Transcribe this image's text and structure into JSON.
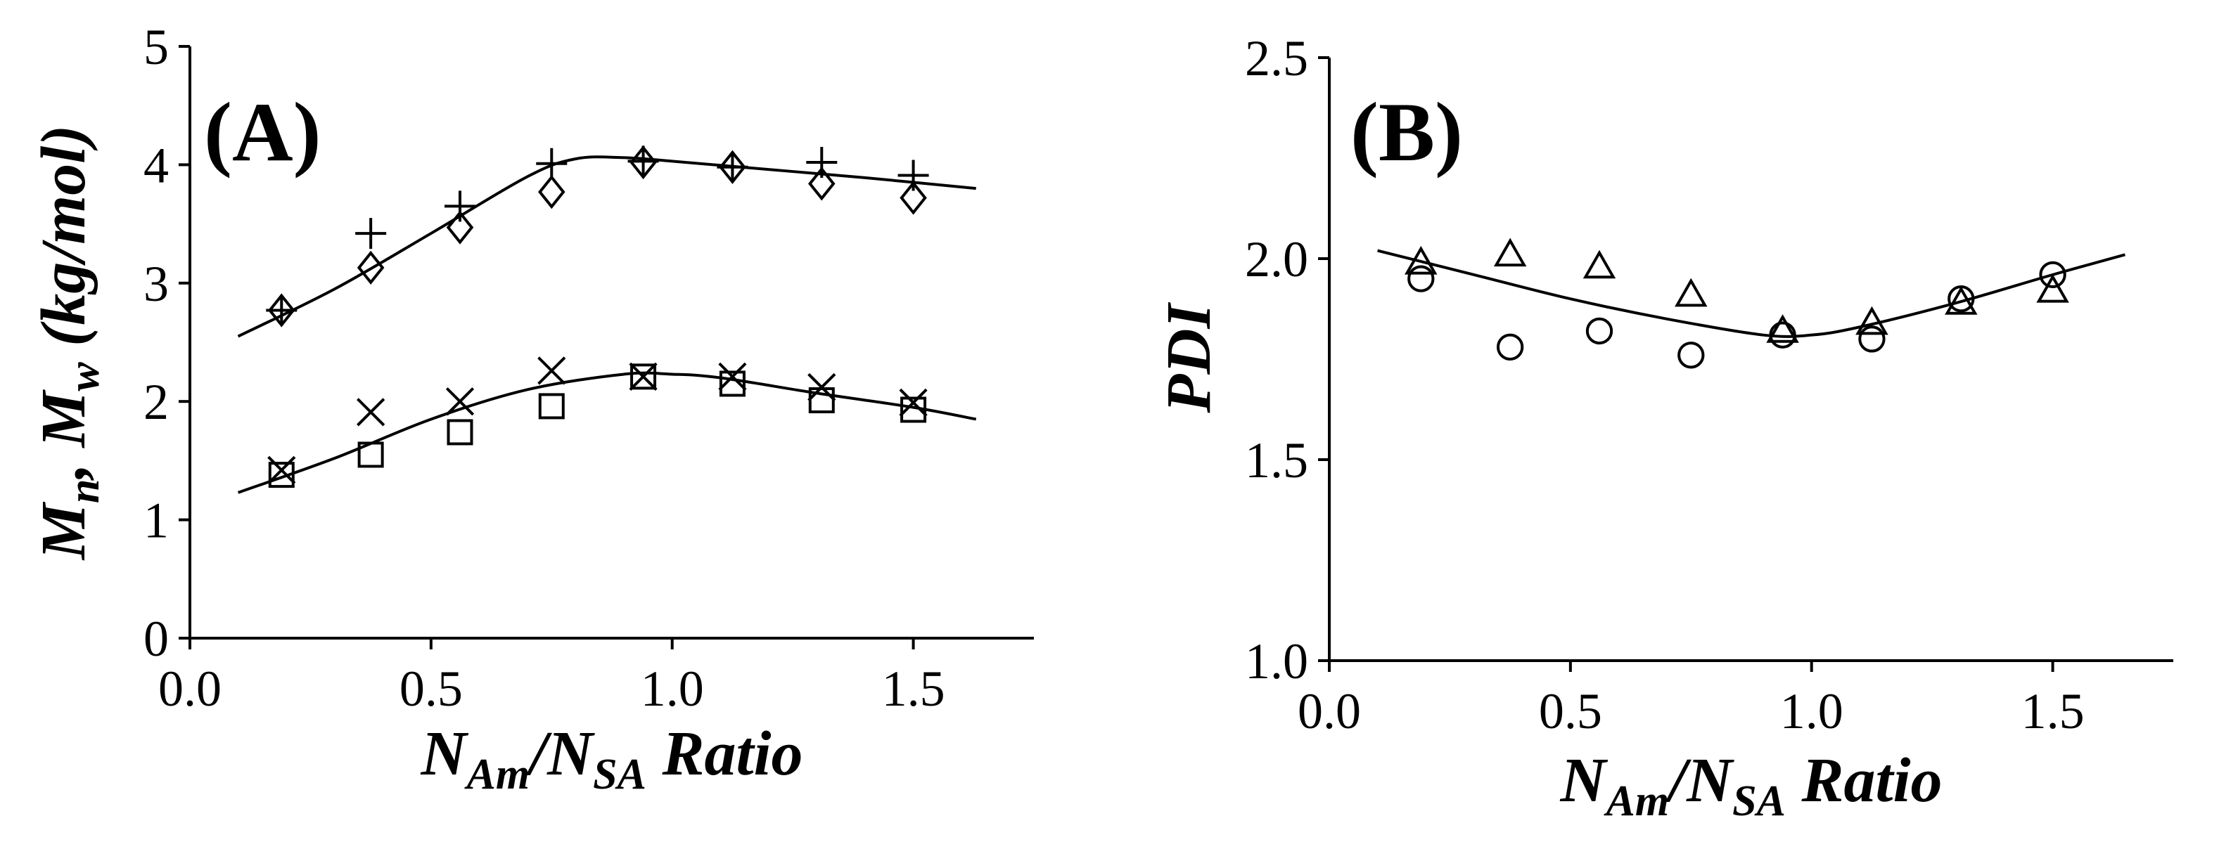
{
  "chart_data": [
    {
      "type": "scatter",
      "panel_label": "(A)",
      "xlabel": {
        "n1": "N",
        "sub1": "Am",
        "slash": "/",
        "n2": "N",
        "sub2": "SA",
        "rest": " Ratio"
      },
      "ylabel": {
        "m1": "M",
        "sub1": "n",
        "comma": ", ",
        "m2": "M",
        "sub2": "w",
        "rest": " (kg/mol)"
      },
      "xlim": [
        0,
        1.75
      ],
      "ylim": [
        0,
        5
      ],
      "xticks": [
        "0.0",
        "0.5",
        "1.0",
        "1.5"
      ],
      "yticks": [
        "0",
        "1",
        "2",
        "3",
        "4",
        "5"
      ],
      "grid": false,
      "series": [
        {
          "marker": "plus",
          "x": [
            0.19,
            0.375,
            0.56,
            0.75,
            0.94,
            1.125,
            1.31,
            1.5
          ],
          "y": [
            2.77,
            3.42,
            3.65,
            4.01,
            4.03,
            3.98,
            4.02,
            3.91
          ]
        },
        {
          "marker": "diamond",
          "x": [
            0.19,
            0.375,
            0.56,
            0.75,
            0.94,
            1.125,
            1.31,
            1.5
          ],
          "y": [
            2.77,
            3.13,
            3.47,
            3.77,
            4.02,
            3.98,
            3.84,
            3.72
          ]
        },
        {
          "marker": "cross",
          "x": [
            0.19,
            0.375,
            0.56,
            0.75,
            0.94,
            1.125,
            1.31,
            1.5
          ],
          "y": [
            1.42,
            1.91,
            2.0,
            2.26,
            2.21,
            2.21,
            2.12,
            1.99
          ]
        },
        {
          "marker": "square",
          "x": [
            0.19,
            0.375,
            0.56,
            0.75,
            0.94,
            1.125,
            1.31,
            1.5
          ],
          "y": [
            1.38,
            1.55,
            1.74,
            1.96,
            2.21,
            2.15,
            2.01,
            1.93
          ]
        },
        {
          "marker": "line",
          "x": [
            0.1,
            0.3,
            0.5,
            0.7,
            0.8,
            0.9,
            1.0,
            1.2,
            1.4,
            1.63
          ],
          "y": [
            2.55,
            2.95,
            3.42,
            3.9,
            4.05,
            4.06,
            4.03,
            3.96,
            3.89,
            3.8
          ]
        },
        {
          "marker": "line",
          "x": [
            0.1,
            0.3,
            0.5,
            0.7,
            0.9,
            1.0,
            1.1,
            1.3,
            1.5,
            1.63
          ],
          "y": [
            1.23,
            1.52,
            1.85,
            2.1,
            2.23,
            2.23,
            2.2,
            2.07,
            1.95,
            1.85
          ]
        }
      ]
    },
    {
      "type": "scatter",
      "panel_label": "(B)",
      "xlabel": {
        "n1": "N",
        "sub1": "Am",
        "slash": "/",
        "n2": "N",
        "sub2": "SA",
        "rest": " Ratio"
      },
      "ylabel": {
        "text": "PDI"
      },
      "xlim": [
        0,
        1.75
      ],
      "ylim": [
        1.0,
        2.5
      ],
      "xticks": [
        "0.0",
        "0.5",
        "1.0",
        "1.5"
      ],
      "yticks": [
        "1.0",
        "1.5",
        "2.0",
        "2.5"
      ],
      "grid": false,
      "series": [
        {
          "marker": "triangle",
          "x": [
            0.19,
            0.375,
            0.56,
            0.75,
            0.94,
            1.125,
            1.31,
            1.5
          ],
          "y": [
            1.99,
            2.01,
            1.98,
            1.91,
            1.82,
            1.84,
            1.89,
            1.92
          ]
        },
        {
          "marker": "circle",
          "x": [
            0.19,
            0.375,
            0.56,
            0.75,
            0.94,
            1.125,
            1.31,
            1.5
          ],
          "y": [
            1.95,
            1.78,
            1.82,
            1.76,
            1.81,
            1.8,
            1.9,
            1.96
          ]
        },
        {
          "marker": "line",
          "x": [
            0.1,
            0.3,
            0.5,
            0.7,
            0.9,
            1.0,
            1.1,
            1.3,
            1.5,
            1.65
          ],
          "y": [
            2.02,
            1.96,
            1.9,
            1.85,
            1.81,
            1.81,
            1.83,
            1.89,
            1.96,
            2.01
          ]
        }
      ]
    }
  ]
}
